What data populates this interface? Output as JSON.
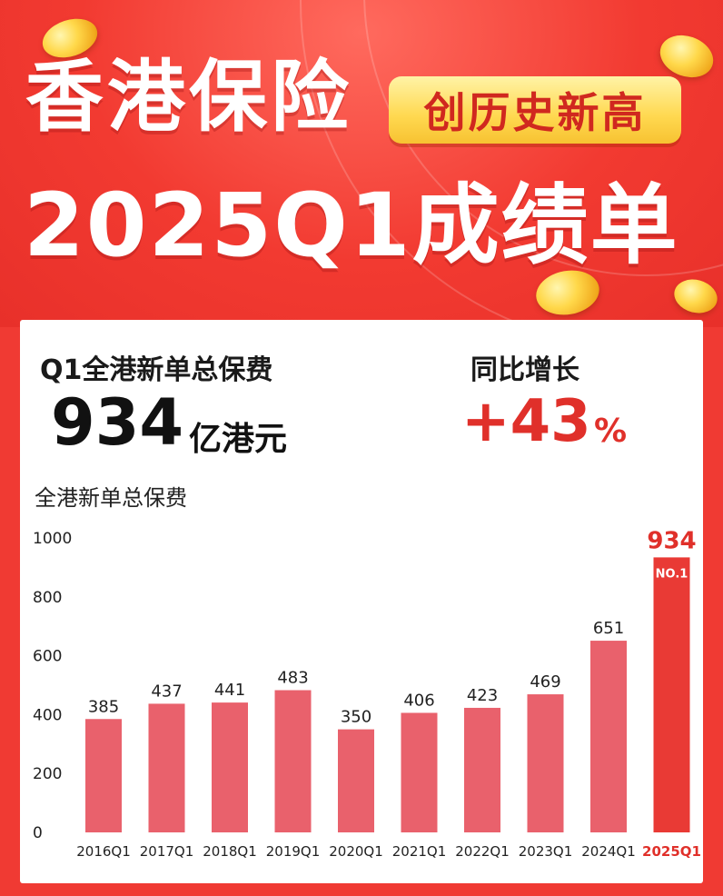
{
  "header": {
    "title_line1": "香港保险",
    "badge": "创历史新高",
    "title_line2": "2025Q1成绩单"
  },
  "summary": {
    "premium_label": "Q1全港新单总保费",
    "premium_value": "934",
    "premium_unit": "亿港元",
    "growth_label": "同比增长",
    "growth_value": "+43",
    "growth_unit": "%"
  },
  "colors": {
    "bar": "#e9616c",
    "bar_highlight": "#e93a35",
    "value_highlight": "#e0302a",
    "background": "#f03a33",
    "badge_text": "#d0281f"
  },
  "chart_data": {
    "type": "bar",
    "title": "全港新单总保费",
    "categories": [
      "2016Q1",
      "2017Q1",
      "2018Q1",
      "2019Q1",
      "2020Q1",
      "2021Q1",
      "2022Q1",
      "2023Q1",
      "2024Q1",
      "2025Q1"
    ],
    "values": [
      385,
      437,
      441,
      483,
      350,
      406,
      423,
      469,
      651,
      934
    ],
    "ylim": [
      0,
      1000
    ],
    "yticks": [
      0,
      200,
      400,
      600,
      800,
      1000
    ],
    "highlight_index": 9,
    "highlight_tag": "NO.1",
    "grid": false,
    "legend": "none"
  }
}
